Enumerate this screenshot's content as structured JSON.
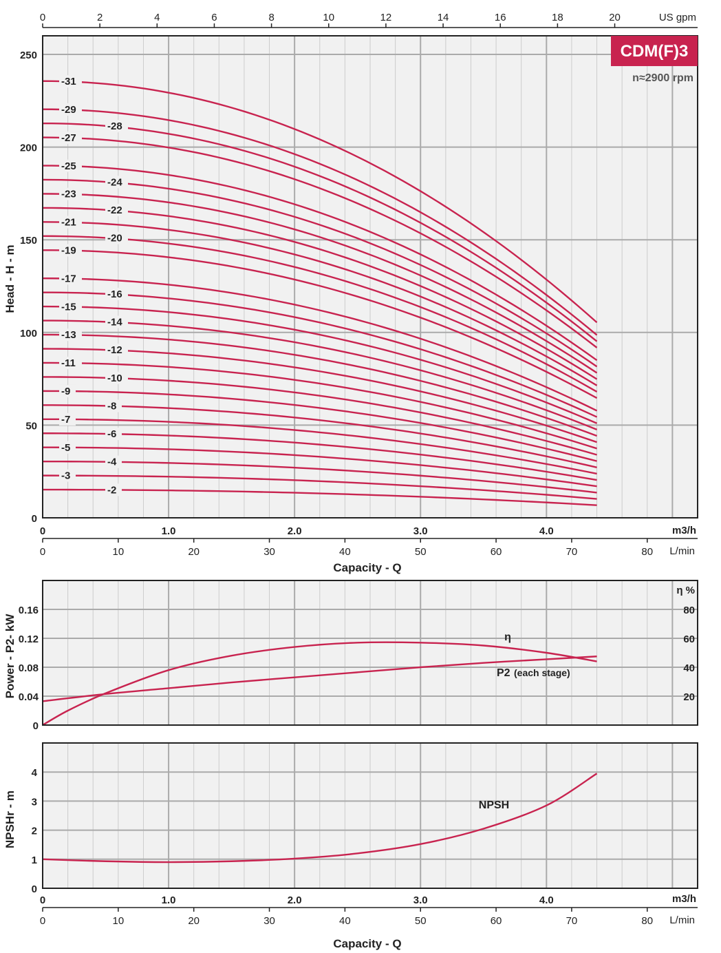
{
  "colors": {
    "curve": "#c8234f",
    "badge": "#c8234f",
    "grid_major": "#aaaaaa",
    "grid_minor": "#cccccc",
    "frame": "#222222",
    "plot_bg": "#f1f1f1"
  },
  "header": {
    "model": "CDM(F)3",
    "speed": "n≈2900 rpm"
  },
  "chart_data": [
    {
      "type": "line",
      "name": "head-curves",
      "xlabel": "Capacity - Q",
      "ylabel": "Head - H - m",
      "xlim": [
        0,
        5.2
      ],
      "ylim": [
        0,
        260
      ],
      "x_unit": "m3/h",
      "x_ticks": [
        "0",
        "1.0",
        "2.0",
        "3.0",
        "4.0"
      ],
      "y_ticks": [
        "0",
        "50",
        "100",
        "150",
        "200",
        "250"
      ],
      "secondary_x_top": {
        "unit": "US gpm",
        "ticks": [
          "0",
          "2",
          "4",
          "6",
          "8",
          "10",
          "12",
          "14",
          "16",
          "18",
          "20"
        ]
      },
      "secondary_x_bottom": {
        "unit": "L/min",
        "ticks": [
          "0",
          "10",
          "20",
          "30",
          "40",
          "50",
          "60",
          "70",
          "80"
        ]
      },
      "shutoff_head_per_stage_m": 7.6,
      "end_head_per_stage_m": 3.4,
      "end_flow_m3h": 4.4,
      "stages": [
        2,
        3,
        4,
        5,
        6,
        7,
        8,
        9,
        10,
        11,
        12,
        13,
        14,
        15,
        16,
        17,
        19,
        20,
        21,
        22,
        23,
        24,
        25,
        27,
        28,
        29,
        31
      ],
      "labels": [
        {
          "stage": 2,
          "text": "-2"
        },
        {
          "stage": 3,
          "text": "-3"
        },
        {
          "stage": 4,
          "text": "-4"
        },
        {
          "stage": 5,
          "text": "-5"
        },
        {
          "stage": 6,
          "text": "-6"
        },
        {
          "stage": 7,
          "text": "-7"
        },
        {
          "stage": 8,
          "text": "-8"
        },
        {
          "stage": 9,
          "text": "-9"
        },
        {
          "stage": 10,
          "text": "-10"
        },
        {
          "stage": 11,
          "text": "-11"
        },
        {
          "stage": 12,
          "text": "-12"
        },
        {
          "stage": 13,
          "text": "-13"
        },
        {
          "stage": 14,
          "text": "-14"
        },
        {
          "stage": 15,
          "text": "-15"
        },
        {
          "stage": 16,
          "text": "-16"
        },
        {
          "stage": 17,
          "text": "-17"
        },
        {
          "stage": 19,
          "text": "-19"
        },
        {
          "stage": 20,
          "text": "-20"
        },
        {
          "stage": 21,
          "text": "-21"
        },
        {
          "stage": 22,
          "text": "-22"
        },
        {
          "stage": 23,
          "text": "-23"
        },
        {
          "stage": 24,
          "text": "-24"
        },
        {
          "stage": 25,
          "text": "-25"
        },
        {
          "stage": 27,
          "text": "-27"
        },
        {
          "stage": 28,
          "text": "-28"
        },
        {
          "stage": 29,
          "text": "-29"
        },
        {
          "stage": 31,
          "text": "-31"
        }
      ]
    },
    {
      "type": "line",
      "name": "power-efficiency",
      "ylabel": "Power - P2- kW",
      "y2label": "η %",
      "xlim": [
        0,
        5.2
      ],
      "ylim": [
        0,
        0.2
      ],
      "y2lim": [
        0,
        100
      ],
      "y_ticks": [
        "0",
        "0.04",
        "0.08",
        "0.12",
        "0.16"
      ],
      "y2_ticks": [
        "20",
        "40",
        "60",
        "80"
      ],
      "series": [
        {
          "name": "P2",
          "label": "P2",
          "label_note": "(each stage)",
          "x": [
            0,
            0.5,
            1.0,
            1.5,
            2.0,
            2.5,
            3.0,
            3.5,
            4.0,
            4.4
          ],
          "values": [
            0.033,
            0.043,
            0.051,
            0.059,
            0.066,
            0.073,
            0.08,
            0.086,
            0.091,
            0.095
          ]
        },
        {
          "name": "η",
          "label": "η",
          "x": [
            0,
            0.2,
            0.5,
            1.0,
            1.5,
            2.0,
            2.5,
            3.0,
            3.5,
            4.0,
            4.4
          ],
          "values": [
            0,
            10,
            22,
            38,
            48,
            54,
            57,
            57,
            55,
            50,
            44
          ]
        }
      ]
    },
    {
      "type": "line",
      "name": "npsh",
      "ylabel": "NPSHr - m",
      "xlabel": "Capacity - Q",
      "xlim": [
        0,
        5.2
      ],
      "ylim": [
        0,
        5
      ],
      "x_unit": "m3/h",
      "x_ticks": [
        "0",
        "1.0",
        "2.0",
        "3.0",
        "4.0"
      ],
      "y_ticks": [
        "0",
        "1",
        "2",
        "3",
        "4"
      ],
      "secondary_x_bottom": {
        "unit": "L/min",
        "ticks": [
          "0",
          "10",
          "20",
          "30",
          "40",
          "50",
          "60",
          "70",
          "80"
        ]
      },
      "series": [
        {
          "name": "NPSH",
          "label": "NPSH",
          "x": [
            0,
            0.5,
            1.0,
            1.5,
            2.0,
            2.5,
            3.0,
            3.5,
            4.0,
            4.4
          ],
          "values": [
            1.0,
            0.93,
            0.9,
            0.93,
            1.02,
            1.2,
            1.52,
            2.05,
            2.85,
            3.95
          ]
        }
      ]
    }
  ]
}
